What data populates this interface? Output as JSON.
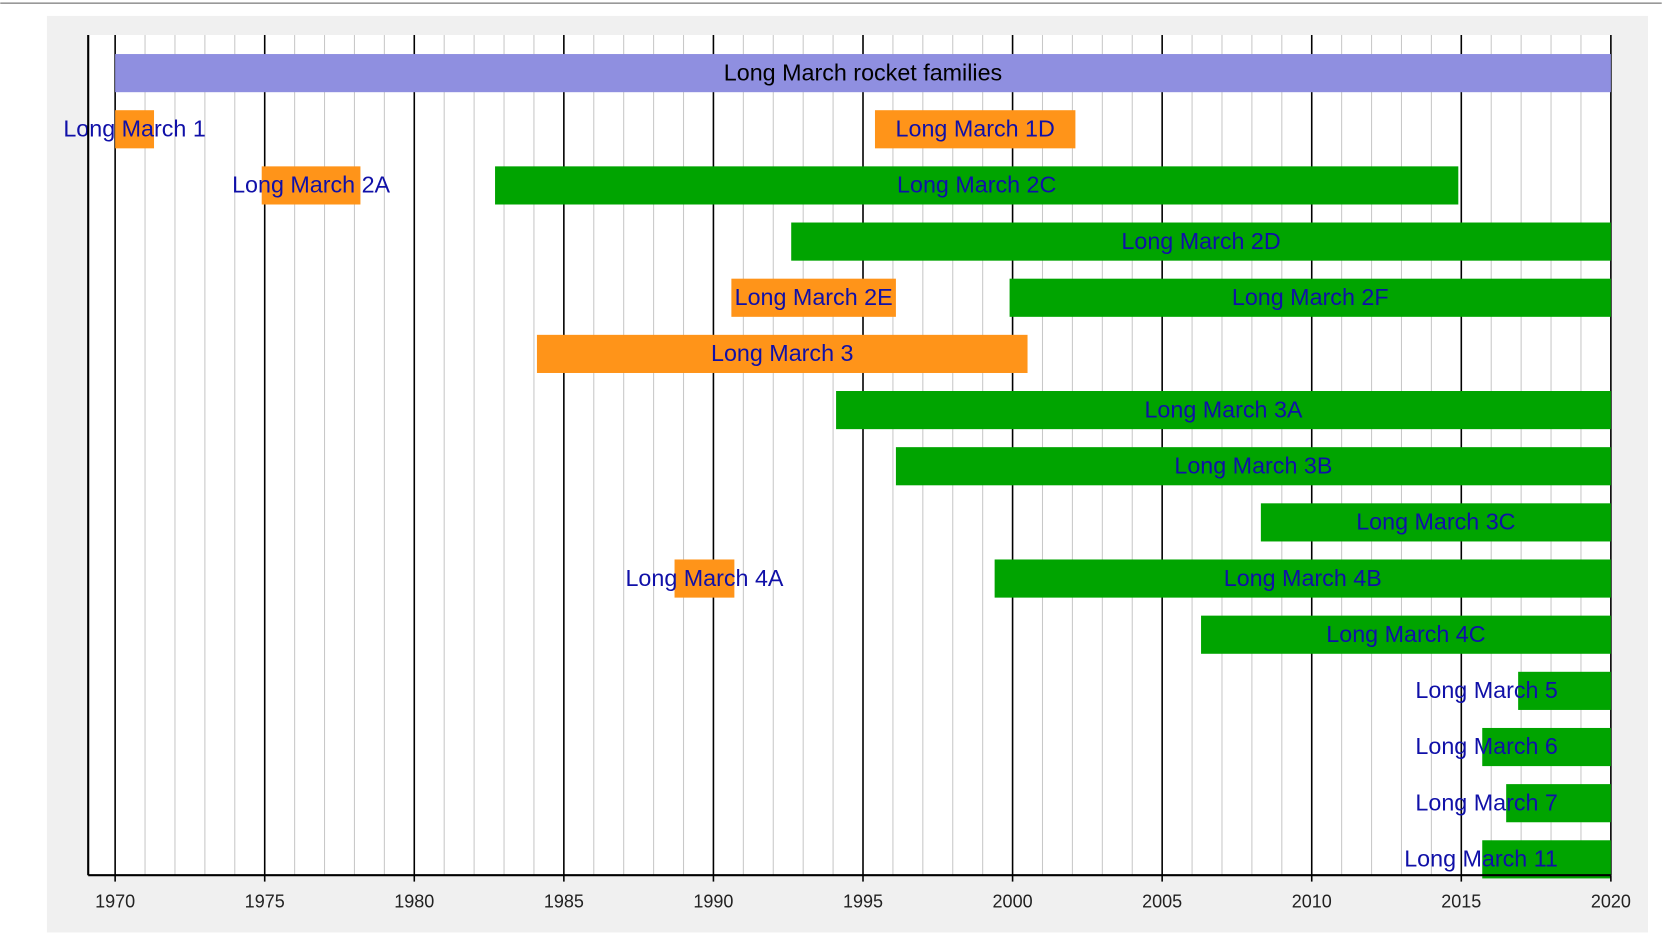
{
  "chart_data": {
    "type": "timeline",
    "xlim": [
      1969.1,
      2020
    ],
    "xticks": [
      1970,
      1975,
      1980,
      1985,
      1990,
      1995,
      2000,
      2005,
      2010,
      2015,
      2020
    ],
    "minor_grid_step": 1,
    "grid": true,
    "label_color": "#1010a8",
    "rows": [
      [
        {
          "name": "Long March rocket families",
          "start": 1970,
          "end": 2020,
          "color": "#8f8fe0",
          "label_color": "#000000"
        }
      ],
      [
        {
          "name": "Long March 1",
          "start": 1970,
          "end": 1971.3,
          "color": "#ff9419"
        },
        {
          "name": "Long March 1D",
          "start": 1995.4,
          "end": 2002.1,
          "color": "#ff9419"
        }
      ],
      [
        {
          "name": "Long March 2A",
          "start": 1974.9,
          "end": 1978.2,
          "color": "#ff9419"
        },
        {
          "name": "Long March 2C",
          "start": 1982.7,
          "end": 2014.9,
          "color": "#00a400"
        }
      ],
      [
        {
          "name": "Long March 2D",
          "start": 1992.6,
          "end": 2020,
          "color": "#00a400"
        }
      ],
      [
        {
          "name": "Long March 2E",
          "start": 1990.6,
          "end": 1996.1,
          "color": "#ff9419"
        },
        {
          "name": "Long March 2F",
          "start": 1999.9,
          "end": 2020,
          "color": "#00a400"
        }
      ],
      [
        {
          "name": "Long March 3",
          "start": 1984.1,
          "end": 2000.5,
          "color": "#ff9419"
        }
      ],
      [
        {
          "name": "Long March 3A",
          "start": 1994.1,
          "end": 2020,
          "color": "#00a400"
        }
      ],
      [
        {
          "name": "Long March 3B",
          "start": 1996.1,
          "end": 2020,
          "color": "#00a400"
        }
      ],
      [
        {
          "name": "Long March 3C",
          "start": 2008.3,
          "end": 2020,
          "color": "#00a400"
        }
      ],
      [
        {
          "name": "Long March 4A",
          "start": 1988.7,
          "end": 1990.7,
          "color": "#ff9419"
        },
        {
          "name": "Long March 4B",
          "start": 1999.4,
          "end": 2020,
          "color": "#00a400"
        }
      ],
      [
        {
          "name": "Long March 4C",
          "start": 2006.3,
          "end": 2020,
          "color": "#00a400"
        }
      ],
      [
        {
          "name": "Long March 5",
          "start": 2016.9,
          "end": 2020,
          "color": "#00a400"
        }
      ],
      [
        {
          "name": "Long March 6",
          "start": 2015.7,
          "end": 2020,
          "color": "#00a400"
        }
      ],
      [
        {
          "name": "Long March 7",
          "start": 2016.5,
          "end": 2020,
          "color": "#00a400"
        }
      ],
      [
        {
          "name": "Long March 11",
          "start": 2015.7,
          "end": 2020,
          "color": "#00a400"
        }
      ]
    ]
  }
}
